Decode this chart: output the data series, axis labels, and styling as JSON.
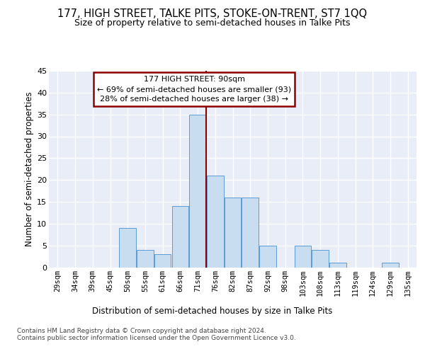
{
  "title1": "177, HIGH STREET, TALKE PITS, STOKE-ON-TRENT, ST7 1QQ",
  "title2": "Size of property relative to semi-detached houses in Talke Pits",
  "xlabel": "Distribution of semi-detached houses by size in Talke Pits",
  "ylabel": "Number of semi-detached properties",
  "categories": [
    "29sqm",
    "34sqm",
    "39sqm",
    "45sqm",
    "50sqm",
    "55sqm",
    "61sqm",
    "66sqm",
    "71sqm",
    "76sqm",
    "82sqm",
    "87sqm",
    "92sqm",
    "98sqm",
    "103sqm",
    "108sqm",
    "113sqm",
    "119sqm",
    "124sqm",
    "129sqm",
    "135sqm"
  ],
  "values": [
    0,
    0,
    0,
    0,
    9,
    4,
    3,
    14,
    35,
    21,
    16,
    16,
    5,
    0,
    5,
    4,
    1,
    0,
    0,
    1,
    0
  ],
  "bar_color": "#c8ddf0",
  "bar_edge_color": "#5b9bd5",
  "annotation_text": "177 HIGH STREET: 90sqm\n← 69% of semi-detached houses are smaller (93)\n28% of semi-detached houses are larger (38) →",
  "vline_index": 8.5,
  "vline_color": "#8b0000",
  "ylim_max": 45,
  "yticks": [
    0,
    5,
    10,
    15,
    20,
    25,
    30,
    35,
    40,
    45
  ],
  "bg_color": "#e8edf8",
  "footer": "Contains HM Land Registry data © Crown copyright and database right 2024.\nContains public sector information licensed under the Open Government Licence v3.0.",
  "title1_fontsize": 10.5,
  "title2_fontsize": 9,
  "tick_fontsize": 7.5,
  "ytick_fontsize": 8,
  "ylabel_fontsize": 8.5,
  "xlabel_fontsize": 8.5,
  "footer_fontsize": 6.5,
  "ann_fontsize": 8
}
